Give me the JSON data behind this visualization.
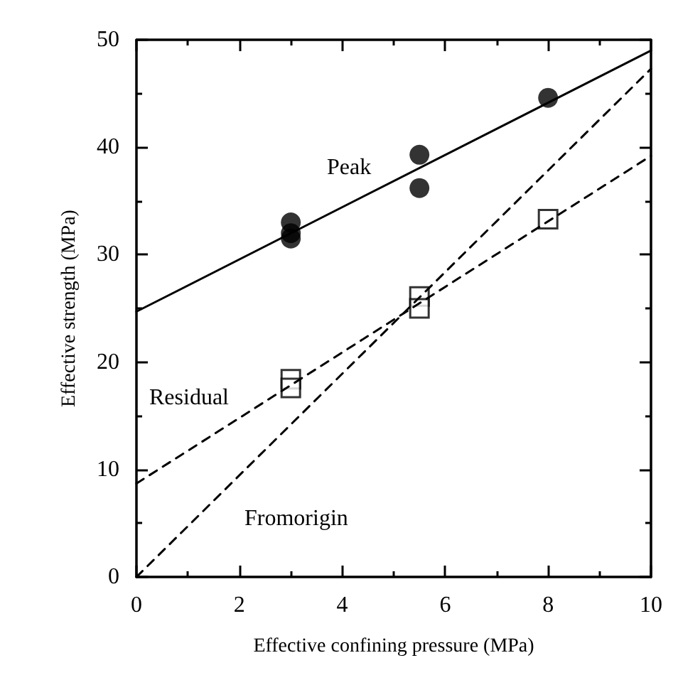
{
  "chart_data": {
    "type": "scatter",
    "xlabel": "Effective confining pressure (MPa)",
    "ylabel": "Effective strength (MPa)",
    "xlim": [
      0,
      10
    ],
    "xticks": [
      0,
      2,
      4,
      6,
      8,
      10
    ],
    "ylim": [
      0,
      50
    ],
    "yticks": [
      0,
      10,
      20,
      30,
      40,
      50
    ],
    "grid": false,
    "series": [
      {
        "marker": "circle",
        "color": "#000000",
        "x": [
          3,
          3,
          3,
          5.5,
          5.5,
          8
        ],
        "values": [
          33.0,
          32.0,
          31.5,
          39.3,
          36.2,
          44.6
        ]
      },
      {
        "marker": "square",
        "color": "#000000",
        "x": [
          3,
          3,
          5.5,
          5.5,
          8
        ],
        "values": [
          18.4,
          17.6,
          26.1,
          25.0,
          33.3
        ]
      },
      {
        "type": "line",
        "marker": "none",
        "line_style": "solid",
        "color": "#000000",
        "x": [
          0,
          10
        ],
        "values": [
          24.7,
          49.0
        ]
      },
      {
        "type": "line",
        "marker": "none",
        "line_style": "dashed",
        "color": "#000000",
        "x": [
          0,
          10
        ],
        "values": [
          8.7,
          39.2
        ]
      },
      {
        "type": "line",
        "marker": "none",
        "line_style": "dashed",
        "color": "#000000",
        "x": [
          0,
          10
        ],
        "values": [
          0,
          47.3
        ]
      }
    ],
    "annotations": [
      "Peak",
      "Residual",
      "Fromorigin"
    ]
  }
}
